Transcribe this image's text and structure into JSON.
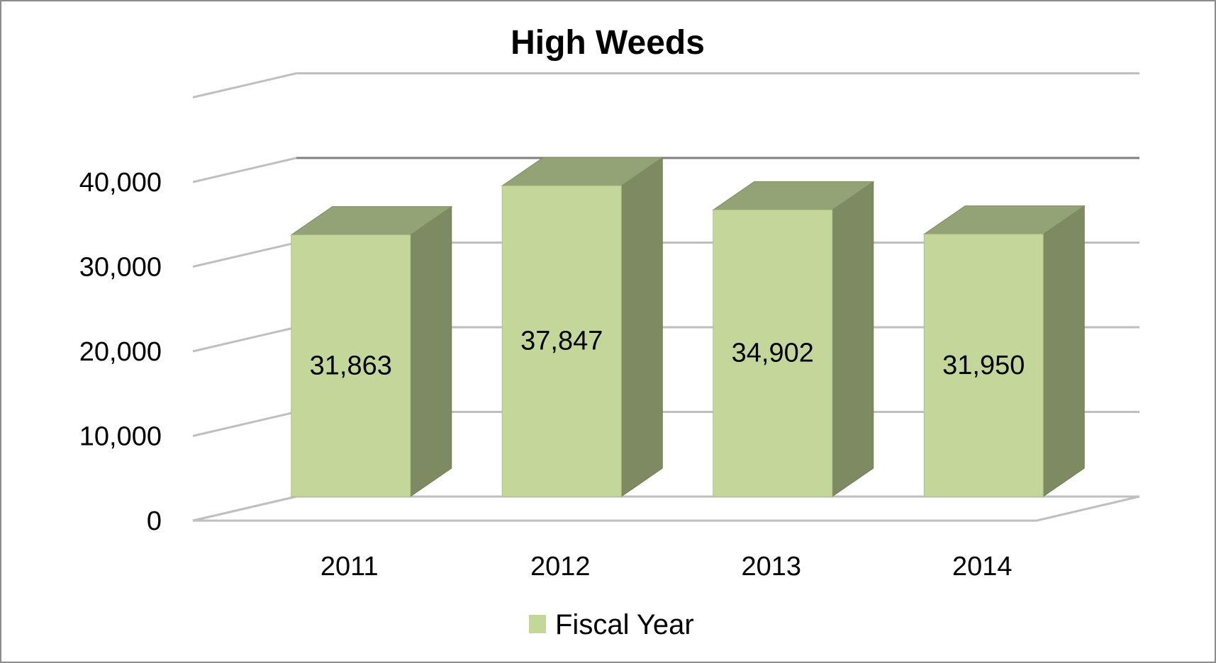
{
  "chart_data": {
    "type": "bar",
    "title": "High Weeds",
    "categories": [
      "2011",
      "2012",
      "2013",
      "2014"
    ],
    "series": [
      {
        "name": "Fiscal Year",
        "values": [
          31863,
          37847,
          34902,
          31950
        ],
        "labels": [
          "31,863",
          "37,847",
          "34,902",
          "31,950"
        ]
      }
    ],
    "yticks": [
      "0",
      "10,000",
      "20,000",
      "30,000",
      "40,000"
    ],
    "ylim": [
      0,
      40000
    ],
    "legend_position": "bottom",
    "grid": true,
    "colors": {
      "front": "#c4d79b",
      "top": "#93a375",
      "side": "#7d8a62",
      "grid": "#bfbfbf",
      "frame": "#8c8c8c"
    }
  }
}
